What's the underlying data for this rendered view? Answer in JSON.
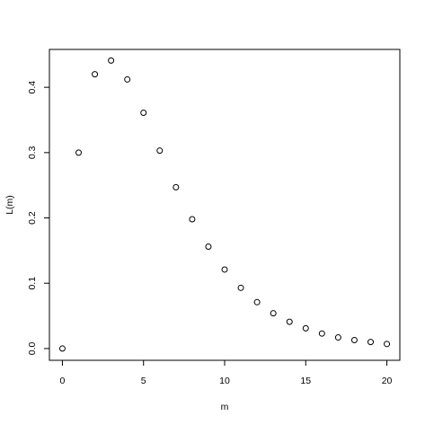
{
  "chart_data": {
    "type": "scatter",
    "xlabel": "m",
    "ylabel": "L(m)",
    "xlim": [
      -0.8,
      20.8
    ],
    "ylim": [
      -0.018,
      0.458
    ],
    "x_ticks": [
      0,
      5,
      10,
      15,
      20
    ],
    "x_tick_labels": [
      "0",
      "5",
      "10",
      "15",
      "20"
    ],
    "y_ticks": [
      0.0,
      0.1,
      0.2,
      0.3,
      0.4
    ],
    "y_tick_labels": [
      "0.0",
      "0.1",
      "0.2",
      "0.3",
      "0.4"
    ],
    "grid": false,
    "legend": "none",
    "marker": "open-circle",
    "points": [
      {
        "x": 0,
        "y": 0.0
      },
      {
        "x": 1,
        "y": 0.3
      },
      {
        "x": 2,
        "y": 0.42
      },
      {
        "x": 3,
        "y": 0.441
      },
      {
        "x": 4,
        "y": 0.412
      },
      {
        "x": 5,
        "y": 0.361
      },
      {
        "x": 6,
        "y": 0.303
      },
      {
        "x": 7,
        "y": 0.247
      },
      {
        "x": 8,
        "y": 0.198
      },
      {
        "x": 9,
        "y": 0.156
      },
      {
        "x": 10,
        "y": 0.121
      },
      {
        "x": 11,
        "y": 0.093
      },
      {
        "x": 12,
        "y": 0.071
      },
      {
        "x": 13,
        "y": 0.054
      },
      {
        "x": 14,
        "y": 0.041
      },
      {
        "x": 15,
        "y": 0.031
      },
      {
        "x": 16,
        "y": 0.023
      },
      {
        "x": 17,
        "y": 0.017
      },
      {
        "x": 18,
        "y": 0.013
      },
      {
        "x": 19,
        "y": 0.01
      },
      {
        "x": 20,
        "y": 0.007
      }
    ]
  }
}
